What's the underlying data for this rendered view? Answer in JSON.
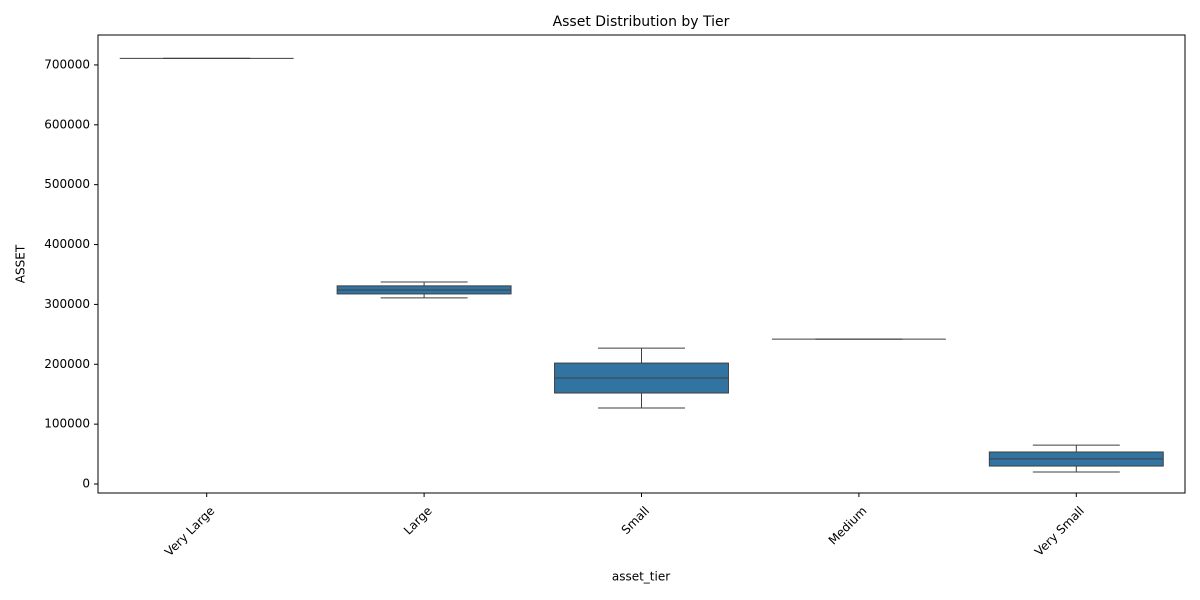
{
  "chart_data": {
    "type": "box",
    "title": "Asset Distribution by Tier",
    "x_label": "asset_tier",
    "y_label": "ASSET",
    "categories": [
      "Very Large",
      "Large",
      "Small",
      "Medium",
      "Very Small"
    ],
    "min": [
      711000,
      311000,
      127000,
      242000,
      20000
    ],
    "q1": [
      711000,
      317500,
      152000,
      242000,
      30000
    ],
    "median": [
      711000,
      324000,
      177000,
      242000,
      42000
    ],
    "q3": [
      711000,
      331000,
      202000,
      242000,
      53500
    ],
    "max": [
      711000,
      337500,
      227000,
      242000,
      65000
    ],
    "color": "#3274a1",
    "edge_color": "#3f3f3f",
    "ylim": [
      -15000,
      750000
    ],
    "yticks": [
      0,
      100000,
      200000,
      300000,
      400000,
      500000,
      600000,
      700000
    ],
    "grid": false
  }
}
